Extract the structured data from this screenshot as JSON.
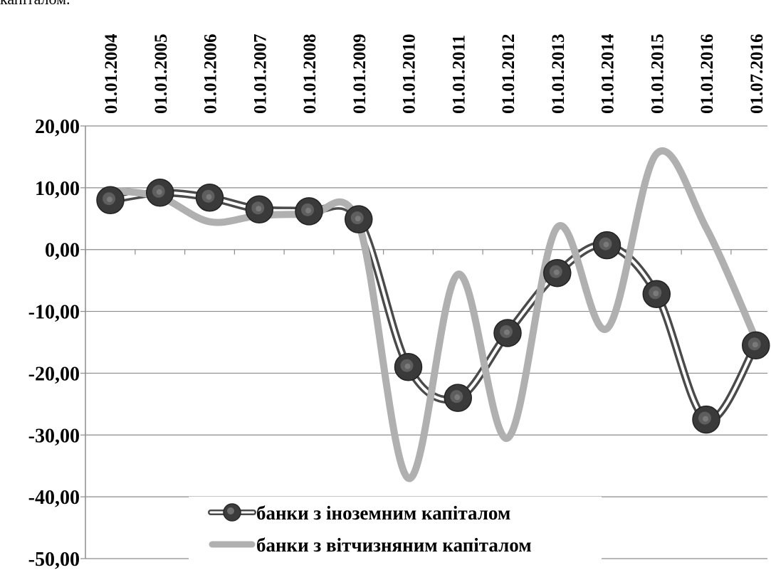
{
  "caption_fragment": "капіталом.",
  "chart_data": {
    "type": "line",
    "title": "",
    "xlabel": "",
    "ylabel": "",
    "categories": [
      "01.01.2004",
      "01.01.2005",
      "01.01.2006",
      "01.01.2007",
      "01.01.2008",
      "01.01.2009",
      "01.01.2010",
      "01.01.2011",
      "01.01.2012",
      "01.01.2013",
      "01.01.2014",
      "01.01.2015",
      "01.01.2016",
      "01.07.2016"
    ],
    "ylim": [
      -50,
      20
    ],
    "yticks": [
      20,
      10,
      0,
      -10,
      -20,
      -30,
      -40,
      -50
    ],
    "ytick_labels": [
      "20,00",
      "10,00",
      "0,00",
      "-10,00",
      "-20,00",
      "-30,00",
      "-40,00",
      "-50,00"
    ],
    "grid": true,
    "smooth": true,
    "legend_position": "bottom-center-inside",
    "series": [
      {
        "name": "банки з іноземним капіталом",
        "color": "#4a4a4a",
        "marker": "circle",
        "values": [
          8.0,
          9.2,
          8.4,
          6.5,
          6.2,
          4.9,
          -19.0,
          -24.0,
          -13.5,
          -3.8,
          0.7,
          -7.2,
          -27.5,
          -15.5
        ]
      },
      {
        "name": "банки з вітчизняним капіталом",
        "color": "#b0b0b0",
        "marker": "none",
        "values": [
          9.6,
          8.5,
          4.5,
          5.5,
          5.6,
          4.2,
          -37.0,
          -4.0,
          -30.5,
          3.6,
          -12.8,
          15.5,
          3.5,
          -14.5
        ]
      }
    ]
  }
}
